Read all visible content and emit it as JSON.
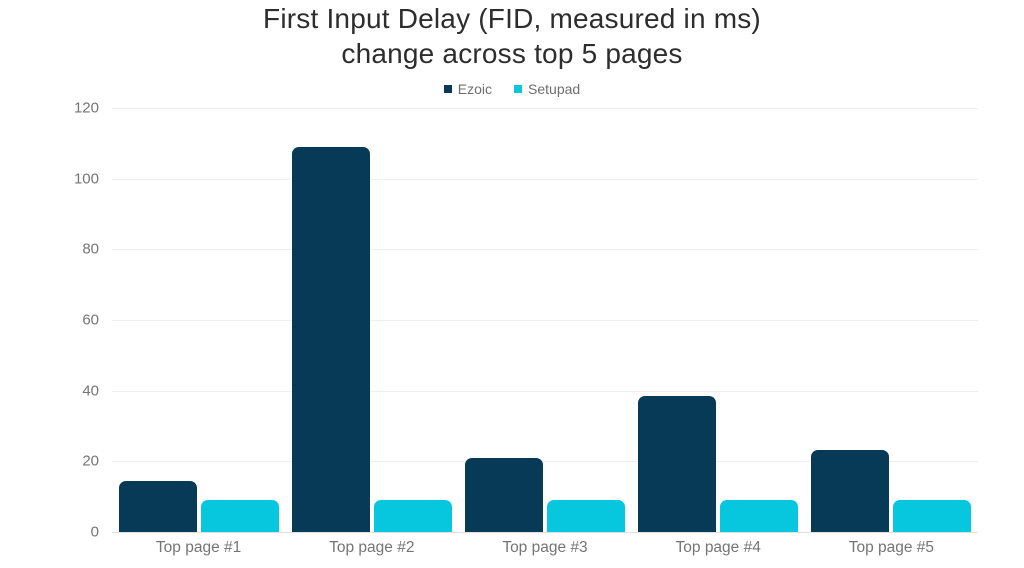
{
  "title": {
    "line1": "First Input Delay (FID, measured in ms)",
    "line2": "change across top 5 pages"
  },
  "chart_data": {
    "type": "bar",
    "title": "First Input Delay (FID, measured in ms) change across top 5 pages",
    "categories": [
      "Top page #1",
      "Top page #2",
      "Top page #3",
      "Top page #4",
      "Top page #5"
    ],
    "series": [
      {
        "name": "Ezoic",
        "color": "#063a56",
        "values": [
          14.5,
          109,
          21,
          38.5,
          23.3
        ]
      },
      {
        "name": "Setupad",
        "color": "#06c7dd",
        "values": [
          9,
          9,
          9,
          9,
          9
        ]
      }
    ],
    "xlabel": "",
    "ylabel": "",
    "ylim": [
      0,
      120
    ],
    "yticks": [
      0,
      20,
      40,
      60,
      80,
      100,
      120
    ],
    "grid": true,
    "legend_position": "top"
  },
  "colors": {
    "background": "#ffffff",
    "grid": "#efefef",
    "baseline": "#e0e0e0",
    "title_text": "#2d2d2d",
    "axis_text": "#757575",
    "legend_text": "#6e6e6e"
  }
}
